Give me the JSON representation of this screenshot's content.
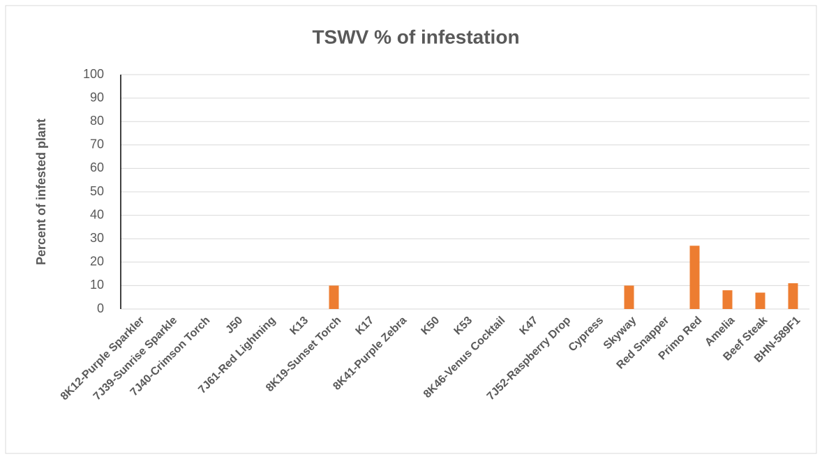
{
  "chart_data": {
    "type": "bar",
    "title": "TSWV % of infestation",
    "y_label": "Percent of infested plant",
    "categories": [
      "8K12-Purple Sparkler",
      "7J39-Sunrise Sparkle",
      "7J40-Crimson Torch",
      "J50",
      "7J61-Red Lightning",
      "K13",
      "8K19-Sunset Torch",
      "K17",
      "8K41-Purple Zebra",
      "K50",
      "K53",
      "8K46-Venus Cocktail",
      "K47",
      "7J52-Raspberry Drop",
      "Cypress",
      "Skyway",
      "Red Snapper",
      "Primo Red",
      "Amelia",
      "Beef Steak",
      "BHN-589F1"
    ],
    "values": [
      0,
      0,
      0,
      0,
      0,
      0,
      10,
      0,
      0,
      0,
      0,
      0,
      0,
      0,
      0,
      10,
      0,
      27,
      8,
      7,
      11
    ],
    "color": "#ed7d31",
    "ylim": [
      0,
      100
    ],
    "yticks": [
      0,
      10,
      20,
      30,
      40,
      50,
      60,
      70,
      80,
      90,
      100
    ],
    "grid": true
  }
}
